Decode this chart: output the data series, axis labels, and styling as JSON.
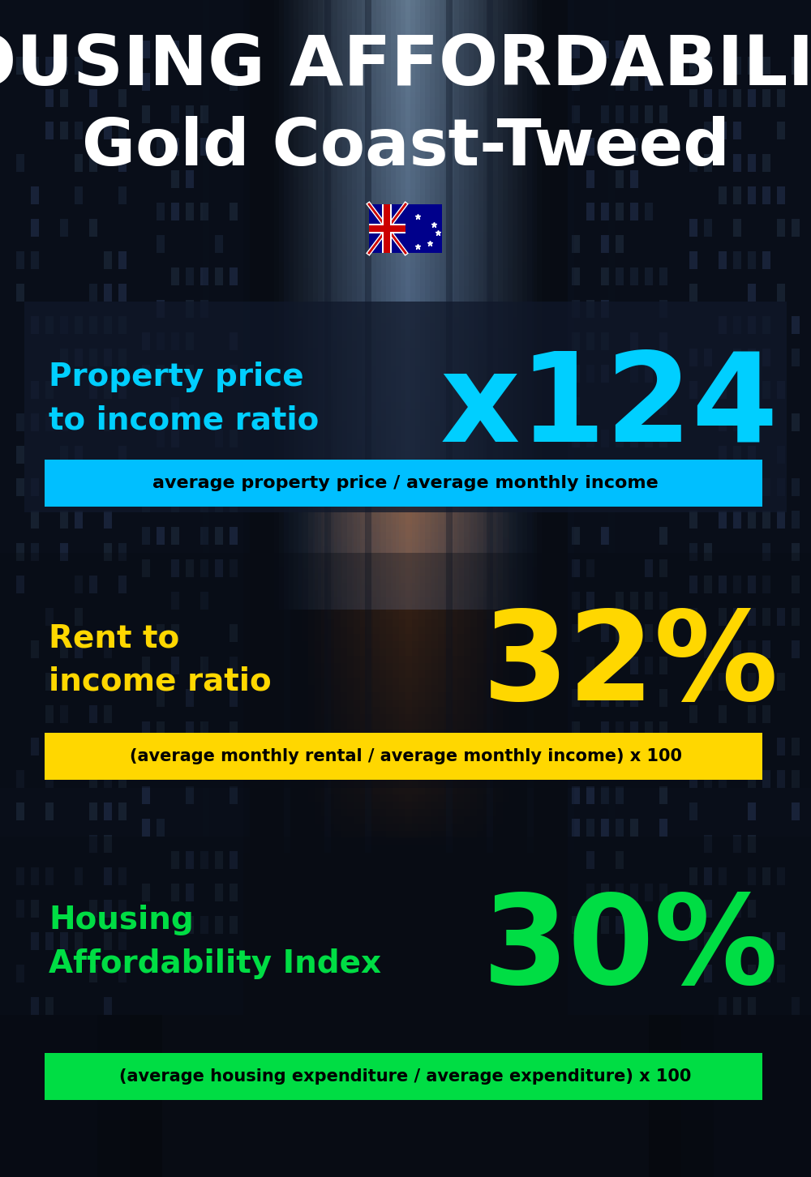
{
  "title_line1": "HOUSING AFFORDABILITY",
  "title_line2": "Gold Coast-Tweed",
  "section1_label": "Property price\nto income ratio",
  "section1_value": "x124",
  "section1_label_color": "#00cfff",
  "section1_value_color": "#00cfff",
  "section1_formula": "average property price / average monthly income",
  "section1_formula_bg": "#00bfff",
  "section2_label": "Rent to\nincome ratio",
  "section2_value": "32%",
  "section2_label_color": "#FFD700",
  "section2_value_color": "#FFD700",
  "section2_formula": "(average monthly rental / average monthly income) x 100",
  "section2_formula_bg": "#FFD700",
  "section3_label": "Housing\nAffordability Index",
  "section3_value": "30%",
  "section3_label_color": "#00dd44",
  "section3_value_color": "#00dd44",
  "section3_formula": "(average housing expenditure / average expenditure) x 100",
  "section3_formula_bg": "#00dd44",
  "bg_color": "#080c14",
  "text_color_white": "#ffffff",
  "text_color_black": "#000000"
}
